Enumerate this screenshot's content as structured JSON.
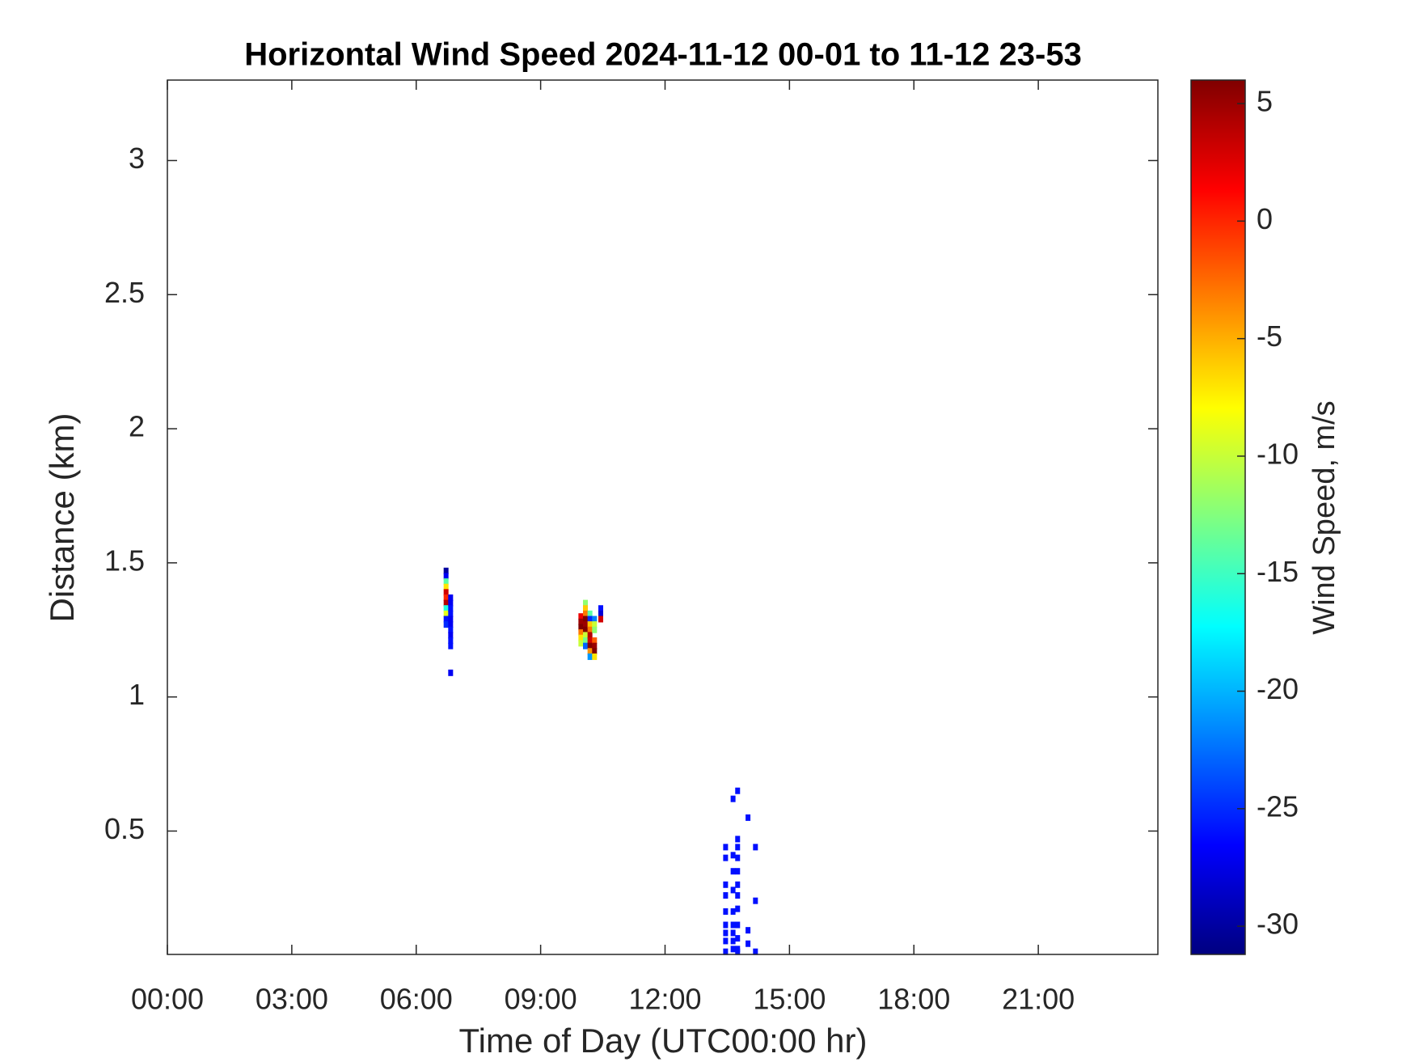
{
  "chart_data": {
    "type": "heatmap",
    "title": "Horizontal Wind Speed 2024-11-12 00-01 to 11-12 23-53",
    "x_label": "Time of Day (UTC00:00 hr)",
    "y_label": "Distance (km)",
    "colorbar_label": "Wind Speed, m/s",
    "colormap": "jet",
    "xlim": [
      0,
      23.883
    ],
    "xticks": [
      {
        "value": 0,
        "label": "00:00"
      },
      {
        "value": 3,
        "label": "03:00"
      },
      {
        "value": 6,
        "label": "06:00"
      },
      {
        "value": 9,
        "label": "09:00"
      },
      {
        "value": 12,
        "label": "12:00"
      },
      {
        "value": 15,
        "label": "15:00"
      },
      {
        "value": 18,
        "label": "18:00"
      },
      {
        "value": 21,
        "label": "21:00"
      }
    ],
    "ylim": [
      0.04,
      3.3
    ],
    "yticks": [
      0.5,
      1,
      1.5,
      2,
      2.5,
      3
    ],
    "clim": [
      -31.2,
      6.0
    ],
    "cticks": [
      -30,
      -25,
      -20,
      -15,
      -10,
      -5,
      0,
      5
    ],
    "x": [
      6.72,
      6.72,
      6.72,
      6.72,
      6.72,
      6.72,
      6.72,
      6.72,
      6.72,
      6.72,
      6.72,
      6.83,
      6.83,
      6.83,
      6.83,
      6.83,
      6.83,
      6.83,
      6.83,
      6.83,
      6.83,
      6.83,
      9.97,
      9.97,
      9.97,
      9.97,
      9.97,
      9.97,
      10.08,
      10.08,
      10.08,
      10.08,
      10.08,
      10.08,
      10.08,
      10.08,
      10.08,
      10.19,
      10.19,
      10.19,
      10.19,
      10.19,
      10.19,
      10.19,
      10.19,
      10.19,
      10.3,
      10.3,
      10.3,
      10.3,
      10.3,
      10.3,
      10.3,
      10.45,
      10.45,
      10.45,
      13.46,
      13.46,
      13.46,
      13.46,
      13.46,
      13.46,
      13.46,
      13.46,
      13.46,
      13.64,
      13.64,
      13.64,
      13.64,
      13.64,
      13.64,
      13.64,
      13.64,
      13.64,
      13.75,
      13.75,
      13.75,
      13.75,
      13.75,
      13.75,
      13.75,
      13.75,
      13.75,
      13.75,
      13.75,
      13.75,
      14.0,
      14.0,
      14.0,
      14.18,
      14.18,
      14.18
    ],
    "y": [
      1.47,
      1.45,
      1.43,
      1.41,
      1.39,
      1.37,
      1.35,
      1.33,
      1.31,
      1.29,
      1.27,
      1.37,
      1.35,
      1.33,
      1.31,
      1.29,
      1.27,
      1.25,
      1.23,
      1.21,
      1.19,
      1.09,
      1.3,
      1.28,
      1.26,
      1.24,
      1.22,
      1.2,
      1.35,
      1.33,
      1.31,
      1.29,
      1.27,
      1.25,
      1.23,
      1.21,
      1.19,
      1.31,
      1.29,
      1.27,
      1.25,
      1.23,
      1.21,
      1.19,
      1.17,
      1.15,
      1.29,
      1.27,
      1.25,
      1.21,
      1.19,
      1.17,
      1.15,
      1.33,
      1.31,
      1.29,
      0.44,
      0.4,
      0.3,
      0.26,
      0.2,
      0.15,
      0.12,
      0.09,
      0.05,
      0.62,
      0.41,
      0.35,
      0.28,
      0.2,
      0.15,
      0.12,
      0.09,
      0.06,
      0.65,
      0.47,
      0.44,
      0.4,
      0.35,
      0.3,
      0.26,
      0.21,
      0.15,
      0.1,
      0.06,
      0.05,
      0.55,
      0.13,
      0.08,
      0.44,
      0.24,
      0.05
    ],
    "values": [
      -30,
      -27,
      -14,
      -7,
      3,
      0,
      4,
      -16,
      -9,
      -26,
      -25,
      -27,
      -27,
      -26,
      -26,
      -27,
      -27,
      -26,
      -27,
      -26,
      -26,
      -27,
      2,
      5,
      6,
      -3,
      -7,
      -10,
      -12,
      -6,
      -3,
      6,
      5,
      6,
      -10,
      -13,
      -23,
      -14,
      -25,
      -6,
      -3,
      4,
      3,
      6,
      -4,
      -21,
      -22,
      -10,
      -12,
      -2,
      5,
      6,
      -7,
      -26,
      -28,
      3,
      -26,
      -26,
      -26,
      -26,
      -26,
      -26,
      -26,
      -26,
      -26,
      -26,
      -26,
      -26,
      -26,
      -26,
      -26,
      -26,
      -26,
      -26,
      -26,
      -26,
      -26,
      -26,
      -26,
      -26,
      -26,
      -26,
      -26,
      -26,
      -26,
      -26,
      -26,
      -26,
      -26,
      -26,
      -26,
      -26
    ]
  }
}
